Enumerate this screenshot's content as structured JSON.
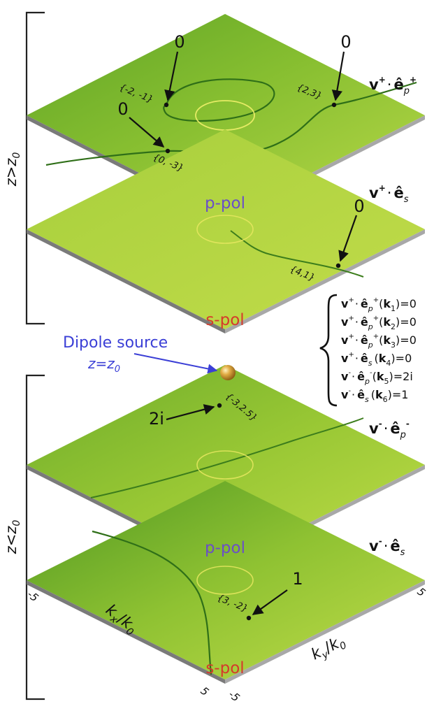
{
  "regions": {
    "upper": {
      "main": "z",
      "op": ">",
      "sub_main": "z",
      "sub_index": "0"
    },
    "lower": {
      "main": "z",
      "op": "<",
      "sub_main": "z",
      "sub_index": "0"
    }
  },
  "polarization": {
    "p": "p-pol",
    "s": "s-pol"
  },
  "colors": {
    "p_pol": "#6a4fc8",
    "s_pol": "#d53a2b",
    "dipole_annotation": "#3b3fd6",
    "plane_light": "#b8d848",
    "plane_dark": "#3f8a1f",
    "ring": "#e8e860",
    "gold_sphere": "#d9a03a"
  },
  "planes": [
    {
      "name": "v+ · ep+",
      "label": {
        "v": "v",
        "vsup": "+",
        "dot": "·",
        "e": "ê",
        "esub": "p",
        "esup": "+"
      },
      "points": [
        {
          "label": "{-2, -1}",
          "value": "0"
        },
        {
          "label": "{2,3}",
          "value": "0"
        },
        {
          "label": "{0, -3}",
          "value": "0"
        }
      ]
    },
    {
      "name": "v+ · es",
      "label": {
        "v": "v",
        "vsup": "+",
        "dot": "·",
        "e": "ê",
        "esub": "s",
        "esup": ""
      },
      "points": [
        {
          "label": "{4,1}",
          "value": "0"
        }
      ]
    },
    {
      "name": "v- · ep-",
      "label": {
        "v": "v",
        "vsup": "-",
        "dot": "·",
        "e": "ê",
        "esub": "p",
        "esup": "-"
      },
      "points": [
        {
          "label": "{-3,2.5}",
          "value": "2i"
        }
      ]
    },
    {
      "name": "v- · es",
      "label": {
        "v": "v",
        "vsup": "-",
        "dot": "·",
        "e": "ê",
        "esub": "s",
        "esup": ""
      },
      "points": [
        {
          "label": "{3, -2}",
          "value": "1"
        }
      ]
    }
  ],
  "dipole": {
    "text": "Dipole source",
    "z_main": "z",
    "eq": "=",
    "z_sub": "0"
  },
  "equations": [
    {
      "vsup": "+",
      "esub": "p",
      "esup": "+",
      "k": "1",
      "rhs": "0"
    },
    {
      "vsup": "+",
      "esub": "p",
      "esup": "+",
      "k": "2",
      "rhs": "0"
    },
    {
      "vsup": "+",
      "esub": "p",
      "esup": "+",
      "k": "3",
      "rhs": "0"
    },
    {
      "vsup": "+",
      "esub": "s",
      "esup": "",
      "k": "4",
      "rhs": "0"
    },
    {
      "vsup": "-",
      "esub": "p",
      "esup": "-",
      "k": "5",
      "rhs": "2i"
    },
    {
      "vsup": "-",
      "esub": "s",
      "esup": "",
      "k": "6",
      "rhs": "1"
    }
  ],
  "axes": {
    "kx": {
      "k": "k",
      "sub": "x",
      "slash": "/",
      "k0": "k",
      "k0sub": "0"
    },
    "ky": {
      "k": "k",
      "sub": "y",
      "slash": "/",
      "k0": "k",
      "k0sub": "0"
    },
    "ticks": {
      "left_top": "-5",
      "left_bottom": "5",
      "right_bottom": "-5",
      "right_top": "5"
    }
  }
}
